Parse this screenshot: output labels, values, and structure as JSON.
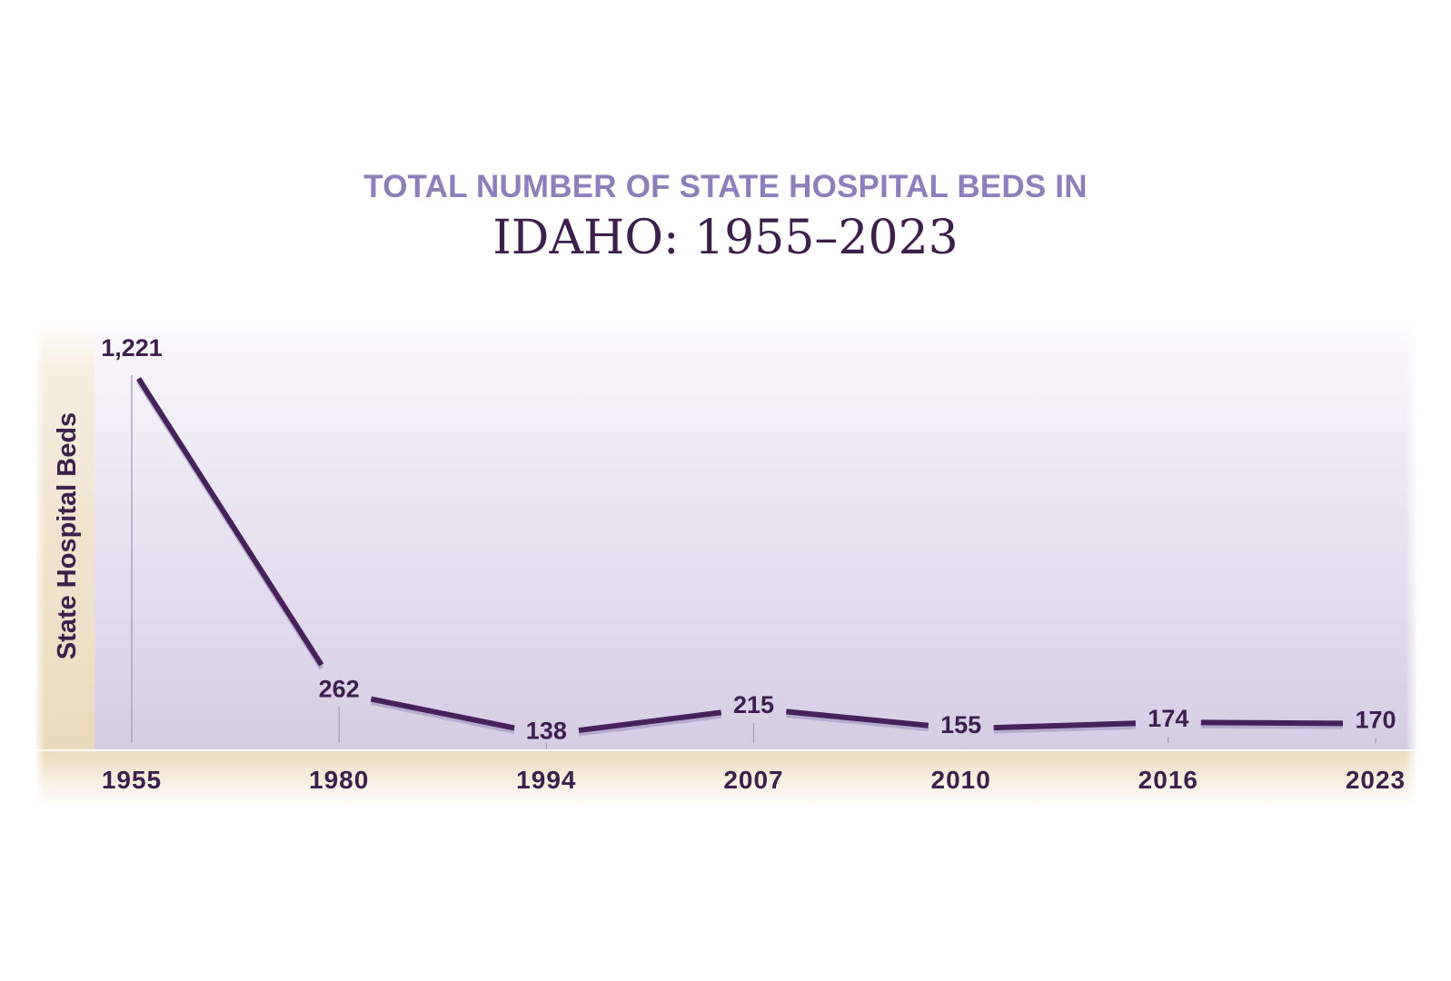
{
  "chart_data": {
    "type": "line",
    "title": "TOTAL NUMBER OF STATE HOSPITAL BEDS IN",
    "subtitle": "IDAHO: 1955–2023",
    "xlabel": "",
    "ylabel": "State Hospital Beds",
    "categories": [
      "1955",
      "1980",
      "1994",
      "2007",
      "2010",
      "2016",
      "2023"
    ],
    "series": [
      {
        "values": [
          1221,
          262,
          138,
          215,
          155,
          174,
          170
        ],
        "data_labels": [
          "1,221",
          "262",
          "138",
          "215",
          "155",
          "174",
          "170"
        ]
      }
    ],
    "ylim": [
      0,
      1221
    ],
    "grid": false,
    "colors": {
      "line": "#47215a",
      "text": "#3d1f4e",
      "title_top": "#8d7fbc",
      "plot_top": "#fcfbfe",
      "plot_bottom": "#d6cce5",
      "band": "#ede0c8"
    }
  }
}
